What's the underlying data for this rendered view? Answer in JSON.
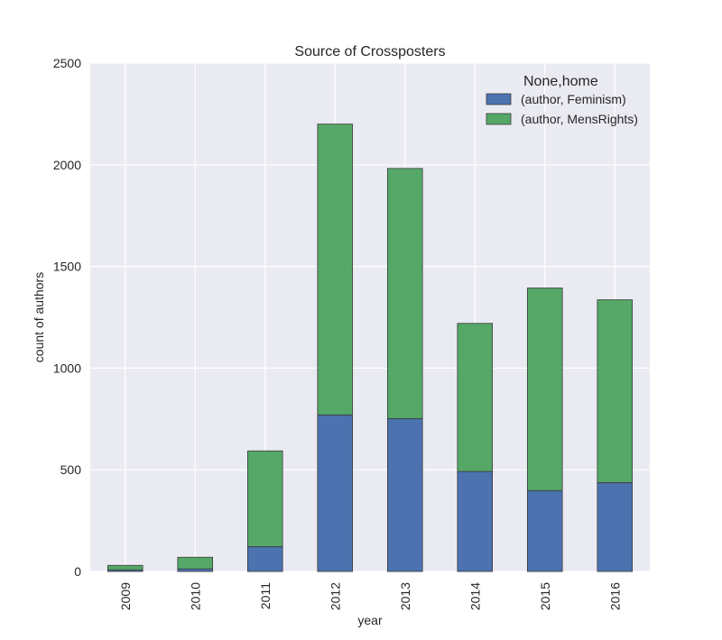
{
  "chart_data": {
    "type": "bar",
    "stacked": true,
    "title": "Source of Crossposters",
    "xlabel": "year",
    "ylabel": "count of authors",
    "categories": [
      "2009",
      "2010",
      "2011",
      "2012",
      "2013",
      "2014",
      "2015",
      "2016"
    ],
    "series": [
      {
        "name": "(author, Feminism)",
        "color": "#4c72b0",
        "values": [
          8,
          13,
          122,
          770,
          752,
          492,
          398,
          437
        ]
      },
      {
        "name": "(author, MensRights)",
        "color": "#55a868",
        "values": [
          22,
          57,
          471,
          1430,
          1230,
          728,
          996,
          899
        ]
      }
    ],
    "ylim": [
      0,
      2500
    ],
    "yticks": [
      0,
      500,
      1000,
      1500,
      2000,
      2500
    ],
    "grid": true,
    "legend": {
      "title": "None,home",
      "position": "top-right"
    },
    "style": {
      "background": "#eaeaf2",
      "grid_color": "#ffffff",
      "edge_color": "#3a3a3a"
    }
  }
}
